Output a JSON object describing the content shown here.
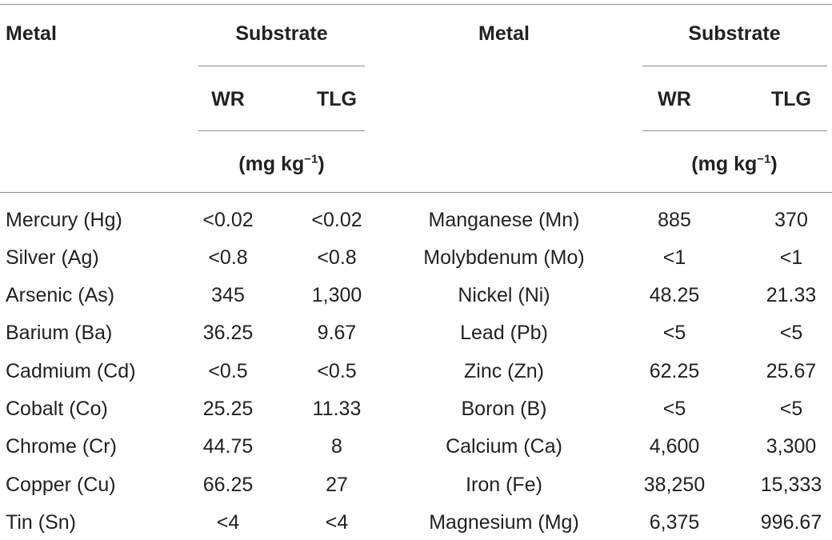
{
  "header": {
    "left": {
      "metal": "Metal",
      "substrate": "Substrate",
      "col_wr": "WR",
      "col_tlg": "TLG",
      "unit_prefix": "(mg kg",
      "unit_exp": "−1",
      "unit_suffix": ")"
    },
    "right": {
      "metal": "Metal",
      "substrate": "Substrate",
      "col_wr": "WR",
      "col_tlg": "TLG",
      "unit_prefix": "(mg kg",
      "unit_exp": "−1",
      "unit_suffix": ")"
    }
  },
  "rows": [
    {
      "metal_left": "Mercury (Hg)",
      "wr_left": "<0.02",
      "tlg_left": "<0.02",
      "metal_right": "Manganese (Mn)",
      "wr_right": "885",
      "tlg_right": "370"
    },
    {
      "metal_left": "Silver (Ag)",
      "wr_left": "<0.8",
      "tlg_left": "<0.8",
      "metal_right": "Molybdenum (Mo)",
      "wr_right": "<1",
      "tlg_right": "<1"
    },
    {
      "metal_left": "Arsenic (As)",
      "wr_left": "345",
      "tlg_left": "1,300",
      "metal_right": "Nickel (Ni)",
      "wr_right": "48.25",
      "tlg_right": "21.33"
    },
    {
      "metal_left": "Barium (Ba)",
      "wr_left": "36.25",
      "tlg_left": "9.67",
      "metal_right": "Lead (Pb)",
      "wr_right": "<5",
      "tlg_right": "<5"
    },
    {
      "metal_left": "Cadmium (Cd)",
      "wr_left": "<0.5",
      "tlg_left": "<0.5",
      "metal_right": "Zinc (Zn)",
      "wr_right": "62.25",
      "tlg_right": "25.67"
    },
    {
      "metal_left": "Cobalt (Co)",
      "wr_left": "25.25",
      "tlg_left": "11.33",
      "metal_right": "Boron (B)",
      "wr_right": "<5",
      "tlg_right": "<5"
    },
    {
      "metal_left": "Chrome (Cr)",
      "wr_left": "44.75",
      "tlg_left": "8",
      "metal_right": "Calcium (Ca)",
      "wr_right": "4,600",
      "tlg_right": "3,300"
    },
    {
      "metal_left": "Copper (Cu)",
      "wr_left": "66.25",
      "tlg_left": "27",
      "metal_right": "Iron (Fe)",
      "wr_right": "38,250",
      "tlg_right": "15,333"
    },
    {
      "metal_left": "Tin (Sn)",
      "wr_left": "<4",
      "tlg_left": "<4",
      "metal_right": "Magnesium (Mg)",
      "wr_right": "6,375",
      "tlg_right": "996.67"
    }
  ]
}
